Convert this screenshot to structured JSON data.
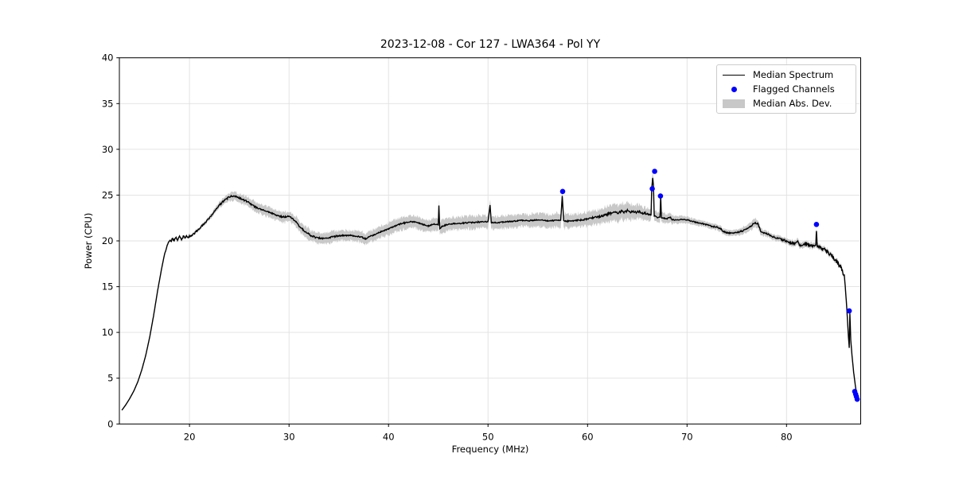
{
  "chart_data": {
    "type": "line",
    "title": "2023-12-08 - Cor 127 - LWA364 - Pol YY",
    "xlabel": "Frequency (MHz)",
    "ylabel": "Power (CPU)",
    "xlim": [
      12.95,
      87.45
    ],
    "ylim": [
      0,
      40
    ],
    "xticks": [
      20,
      30,
      40,
      50,
      60,
      70,
      80
    ],
    "yticks": [
      0,
      5,
      10,
      15,
      20,
      25,
      30,
      35,
      40
    ],
    "grid": true,
    "grid_color": "#e0e0e0",
    "background": "#ffffff",
    "legend": {
      "position": "upper right",
      "items": [
        {
          "label": "Median Spectrum",
          "type": "line",
          "color": "#000000"
        },
        {
          "label": "Flagged Channels",
          "type": "dot",
          "color": "#0000ff"
        },
        {
          "label": "Median Abs. Dev.",
          "type": "patch",
          "color": "#c8c8c8"
        }
      ]
    },
    "series": [
      {
        "name": "Median Spectrum",
        "type": "line",
        "color": "#000000",
        "linewidth": 1.4,
        "points": [
          [
            13.2,
            1.5
          ],
          [
            13.6,
            2.1
          ],
          [
            14.0,
            2.8
          ],
          [
            14.4,
            3.6
          ],
          [
            14.8,
            4.6
          ],
          [
            15.2,
            5.9
          ],
          [
            15.6,
            7.5
          ],
          [
            16.0,
            9.5
          ],
          [
            16.4,
            11.9
          ],
          [
            16.8,
            14.6
          ],
          [
            17.2,
            17.0
          ],
          [
            17.5,
            18.6
          ],
          [
            17.8,
            19.6
          ],
          [
            18.0,
            20.1
          ],
          [
            18.15,
            19.9
          ],
          [
            18.3,
            20.3
          ],
          [
            18.45,
            20.0
          ],
          [
            18.6,
            20.4
          ],
          [
            18.8,
            20.1
          ],
          [
            19.0,
            20.45
          ],
          [
            19.2,
            20.15
          ],
          [
            19.4,
            20.55
          ],
          [
            19.55,
            20.25
          ],
          [
            19.7,
            20.5
          ],
          [
            19.85,
            20.35
          ],
          [
            20.0,
            20.5
          ],
          [
            20.2,
            20.55
          ],
          [
            20.5,
            20.85
          ],
          [
            21.0,
            21.35
          ],
          [
            21.5,
            21.9
          ],
          [
            22.0,
            22.5
          ],
          [
            22.5,
            23.2
          ],
          [
            23.0,
            23.9
          ],
          [
            23.4,
            24.3
          ],
          [
            23.8,
            24.65
          ],
          [
            24.2,
            24.9
          ],
          [
            24.6,
            24.85
          ],
          [
            25.0,
            24.7
          ],
          [
            25.4,
            24.5
          ],
          [
            25.8,
            24.3
          ],
          [
            26.2,
            24.0
          ],
          [
            26.6,
            23.7
          ],
          [
            27.0,
            23.5
          ],
          [
            27.3,
            23.4
          ],
          [
            27.6,
            23.3
          ],
          [
            28.0,
            23.15
          ],
          [
            28.4,
            22.95
          ],
          [
            28.8,
            22.8
          ],
          [
            29.2,
            22.65
          ],
          [
            29.6,
            22.6
          ],
          [
            30.0,
            22.7
          ],
          [
            30.3,
            22.5
          ],
          [
            30.7,
            22.05
          ],
          [
            31.0,
            21.65
          ],
          [
            31.4,
            21.2
          ],
          [
            31.8,
            20.9
          ],
          [
            32.2,
            20.6
          ],
          [
            32.6,
            20.4
          ],
          [
            33.0,
            20.3
          ],
          [
            33.4,
            20.25
          ],
          [
            33.8,
            20.3
          ],
          [
            34.2,
            20.4
          ],
          [
            34.6,
            20.5
          ],
          [
            35.0,
            20.55
          ],
          [
            35.5,
            20.6
          ],
          [
            36.0,
            20.6
          ],
          [
            36.5,
            20.55
          ],
          [
            37.0,
            20.5
          ],
          [
            37.4,
            20.35
          ],
          [
            37.7,
            20.2
          ],
          [
            38.0,
            20.45
          ],
          [
            38.4,
            20.6
          ],
          [
            38.8,
            20.8
          ],
          [
            39.2,
            21.0
          ],
          [
            39.6,
            21.15
          ],
          [
            40.0,
            21.3
          ],
          [
            40.4,
            21.5
          ],
          [
            40.8,
            21.7
          ],
          [
            41.2,
            21.85
          ],
          [
            41.6,
            21.95
          ],
          [
            42.0,
            22.05
          ],
          [
            42.4,
            22.1
          ],
          [
            42.8,
            22.0
          ],
          [
            43.2,
            21.9
          ],
          [
            43.6,
            21.75
          ],
          [
            44.0,
            21.65
          ],
          [
            44.4,
            21.75
          ],
          [
            44.7,
            21.85
          ],
          [
            45.0,
            21.8
          ],
          [
            45.06,
            23.8
          ],
          [
            45.15,
            21.35
          ],
          [
            45.4,
            21.6
          ],
          [
            45.8,
            21.75
          ],
          [
            46.2,
            21.85
          ],
          [
            46.6,
            21.9
          ],
          [
            47.0,
            21.9
          ],
          [
            47.5,
            21.95
          ],
          [
            48.0,
            22.0
          ],
          [
            48.5,
            22.0
          ],
          [
            49.0,
            22.05
          ],
          [
            49.5,
            22.1
          ],
          [
            50.0,
            22.1
          ],
          [
            50.2,
            23.9
          ],
          [
            50.32,
            22.0
          ],
          [
            50.7,
            22.0
          ],
          [
            51.0,
            22.0
          ],
          [
            51.5,
            22.05
          ],
          [
            52.0,
            22.1
          ],
          [
            52.5,
            22.15
          ],
          [
            53.0,
            22.2
          ],
          [
            53.5,
            22.25
          ],
          [
            54.0,
            22.2
          ],
          [
            54.5,
            22.25
          ],
          [
            55.0,
            22.3
          ],
          [
            55.5,
            22.25
          ],
          [
            56.0,
            22.2
          ],
          [
            56.5,
            22.2
          ],
          [
            57.0,
            22.25
          ],
          [
            57.3,
            22.3
          ],
          [
            57.46,
            24.9
          ],
          [
            57.6,
            22.2
          ],
          [
            58.0,
            22.15
          ],
          [
            58.5,
            22.2
          ],
          [
            59.0,
            22.25
          ],
          [
            59.5,
            22.3
          ],
          [
            60.0,
            22.4
          ],
          [
            60.5,
            22.5
          ],
          [
            61.0,
            22.6
          ],
          [
            61.5,
            22.75
          ],
          [
            62.0,
            22.9
          ],
          [
            62.4,
            23.05
          ],
          [
            62.8,
            23.15
          ],
          [
            63.1,
            23.05
          ],
          [
            63.4,
            23.25
          ],
          [
            63.7,
            23.1
          ],
          [
            64.0,
            23.3
          ],
          [
            64.3,
            23.15
          ],
          [
            64.6,
            23.25
          ],
          [
            64.9,
            23.1
          ],
          [
            65.2,
            23.2
          ],
          [
            65.5,
            23.05
          ],
          [
            65.8,
            23.0
          ],
          [
            66.1,
            22.9
          ],
          [
            66.38,
            22.85
          ],
          [
            66.45,
            25.8
          ],
          [
            66.55,
            26.9
          ],
          [
            66.62,
            26.0
          ],
          [
            66.7,
            22.7
          ],
          [
            67.0,
            22.6
          ],
          [
            67.28,
            22.55
          ],
          [
            67.35,
            24.9
          ],
          [
            67.42,
            22.5
          ],
          [
            67.7,
            22.5
          ],
          [
            68.0,
            22.45
          ],
          [
            68.3,
            22.6
          ],
          [
            68.5,
            22.3
          ],
          [
            69.0,
            22.3
          ],
          [
            69.5,
            22.35
          ],
          [
            70.0,
            22.3
          ],
          [
            70.5,
            22.15
          ],
          [
            71.0,
            22.0
          ],
          [
            71.5,
            21.9
          ],
          [
            72.0,
            21.75
          ],
          [
            72.5,
            21.6
          ],
          [
            73.0,
            21.5
          ],
          [
            73.4,
            21.3
          ],
          [
            73.7,
            21.0
          ],
          [
            74.0,
            20.9
          ],
          [
            74.4,
            20.85
          ],
          [
            74.8,
            20.9
          ],
          [
            75.2,
            21.0
          ],
          [
            75.6,
            21.1
          ],
          [
            76.0,
            21.3
          ],
          [
            76.4,
            21.6
          ],
          [
            76.8,
            22.0
          ],
          [
            77.1,
            21.9
          ],
          [
            77.4,
            21.1
          ],
          [
            77.7,
            20.9
          ],
          [
            78.0,
            20.8
          ],
          [
            78.4,
            20.55
          ],
          [
            78.8,
            20.4
          ],
          [
            79.2,
            20.25
          ],
          [
            79.6,
            20.1
          ],
          [
            80.0,
            20.0
          ],
          [
            80.4,
            19.8
          ],
          [
            80.8,
            19.7
          ],
          [
            81.1,
            19.9
          ],
          [
            81.4,
            19.5
          ],
          [
            81.7,
            19.6
          ],
          [
            82.0,
            19.7
          ],
          [
            82.3,
            19.5
          ],
          [
            82.6,
            19.45
          ],
          [
            82.94,
            19.55
          ],
          [
            83.0,
            21.1
          ],
          [
            83.08,
            19.4
          ],
          [
            83.3,
            19.3
          ],
          [
            83.6,
            19.15
          ],
          [
            83.9,
            19.0
          ],
          [
            84.1,
            18.85
          ],
          [
            84.4,
            18.5
          ],
          [
            84.7,
            18.15
          ],
          [
            85.0,
            17.8
          ],
          [
            85.2,
            17.5
          ],
          [
            85.45,
            17.2
          ],
          [
            85.6,
            16.7
          ],
          [
            85.8,
            16.2
          ],
          [
            85.9,
            15.0
          ],
          [
            86.0,
            13.5
          ],
          [
            86.1,
            11.8
          ],
          [
            86.2,
            9.8
          ],
          [
            86.3,
            8.3
          ],
          [
            86.36,
            12.1
          ],
          [
            86.45,
            9.2
          ],
          [
            86.6,
            7.2
          ],
          [
            86.75,
            5.6
          ],
          [
            86.9,
            4.3
          ],
          [
            87.05,
            3.2
          ],
          [
            87.2,
            2.5
          ]
        ]
      },
      {
        "name": "Flagged Channels",
        "type": "scatter",
        "color": "#0000ff",
        "markersize": 3.3,
        "points": [
          [
            57.5,
            25.4
          ],
          [
            66.5,
            25.7
          ],
          [
            66.74,
            27.6
          ],
          [
            67.33,
            24.9
          ],
          [
            83.0,
            21.8
          ],
          [
            86.3,
            12.35
          ],
          [
            86.85,
            3.55
          ],
          [
            86.95,
            3.25
          ],
          [
            87.02,
            3.0
          ],
          [
            87.1,
            2.7
          ]
        ]
      },
      {
        "name": "Median Abs. Dev.",
        "type": "band",
        "color": "#c8c8c8",
        "halfwidth": [
          [
            13.0,
            0.05
          ],
          [
            17.0,
            0.06
          ],
          [
            18.0,
            0.1
          ],
          [
            20.0,
            0.12
          ],
          [
            22.0,
            0.22
          ],
          [
            24.0,
            0.42
          ],
          [
            26.0,
            0.5
          ],
          [
            28.0,
            0.55
          ],
          [
            30.0,
            0.55
          ],
          [
            32.0,
            0.6
          ],
          [
            34.0,
            0.6
          ],
          [
            36.0,
            0.55
          ],
          [
            38.0,
            0.6
          ],
          [
            40.0,
            0.65
          ],
          [
            42.0,
            0.7
          ],
          [
            44.0,
            0.65
          ],
          [
            46.0,
            0.68
          ],
          [
            48.0,
            0.7
          ],
          [
            50.0,
            0.7
          ],
          [
            52.0,
            0.72
          ],
          [
            54.0,
            0.7
          ],
          [
            56.0,
            0.72
          ],
          [
            57.5,
            0.8
          ],
          [
            59.0,
            0.72
          ],
          [
            61.0,
            0.75
          ],
          [
            62.0,
            0.85
          ],
          [
            63.0,
            0.9
          ],
          [
            64.0,
            0.85
          ],
          [
            65.0,
            0.75
          ],
          [
            66.0,
            0.65
          ],
          [
            67.0,
            0.55
          ],
          [
            68.0,
            0.5
          ],
          [
            69.0,
            0.42
          ],
          [
            70.0,
            0.38
          ],
          [
            71.0,
            0.33
          ],
          [
            72.0,
            0.3
          ],
          [
            73.0,
            0.3
          ],
          [
            74.0,
            0.3
          ],
          [
            75.0,
            0.32
          ],
          [
            76.0,
            0.4
          ],
          [
            77.0,
            0.45
          ],
          [
            77.5,
            0.35
          ],
          [
            78.0,
            0.3
          ],
          [
            79.0,
            0.3
          ],
          [
            80.0,
            0.32
          ],
          [
            81.0,
            0.35
          ],
          [
            82.0,
            0.3
          ],
          [
            83.0,
            0.3
          ],
          [
            84.0,
            0.28
          ],
          [
            85.0,
            0.25
          ],
          [
            85.7,
            0.2
          ],
          [
            86.0,
            0.12
          ],
          [
            86.5,
            0.08
          ],
          [
            87.2,
            0.05
          ]
        ]
      }
    ],
    "noise_amplitude": [
      [
        13.0,
        0.0
      ],
      [
        17.4,
        0.01
      ],
      [
        18.0,
        0.1
      ],
      [
        20.0,
        0.1
      ],
      [
        24.0,
        0.1
      ],
      [
        28.0,
        0.08
      ],
      [
        32.0,
        0.09
      ],
      [
        36.0,
        0.08
      ],
      [
        40.0,
        0.07
      ],
      [
        44.0,
        0.07
      ],
      [
        48.0,
        0.06
      ],
      [
        52.0,
        0.06
      ],
      [
        56.0,
        0.06
      ],
      [
        60.0,
        0.08
      ],
      [
        62.0,
        0.14
      ],
      [
        64.0,
        0.12
      ],
      [
        66.0,
        0.1
      ],
      [
        68.0,
        0.06
      ],
      [
        72.0,
        0.06
      ],
      [
        76.0,
        0.08
      ],
      [
        79.0,
        0.1
      ],
      [
        81.0,
        0.15
      ],
      [
        83.0,
        0.12
      ],
      [
        84.0,
        0.18
      ],
      [
        85.0,
        0.22
      ],
      [
        85.7,
        0.2
      ],
      [
        86.0,
        0.03
      ],
      [
        87.2,
        0.02
      ]
    ]
  }
}
